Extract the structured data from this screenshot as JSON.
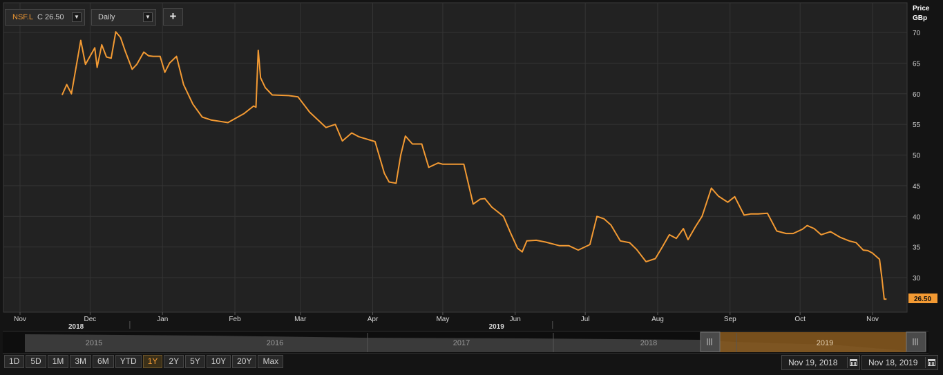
{
  "toolbar": {
    "symbol": "NSF.L",
    "close_text": "C 26.50",
    "interval": "Daily",
    "add_label": "+"
  },
  "axis": {
    "price_label": "Price",
    "unit_label": "GBp"
  },
  "last_value_label": "26.50",
  "colors": {
    "line": "#f39a33",
    "background": "#222222",
    "grid": "#343434",
    "nav_selection": "#8a5a1e"
  },
  "chart_data": {
    "type": "line",
    "series": [
      {
        "name": "NSF.L",
        "x": [
          "2018-11-19",
          "2018-11-21",
          "2018-11-23",
          "2018-11-27",
          "2018-11-29",
          "2018-12-03",
          "2018-12-04",
          "2018-12-06",
          "2018-12-08",
          "2018-12-10",
          "2018-12-12",
          "2018-12-14",
          "2018-12-16",
          "2018-12-19",
          "2018-12-21",
          "2018-12-24",
          "2018-12-26",
          "2018-12-28",
          "2018-12-31",
          "2019-01-02",
          "2019-01-04",
          "2019-01-07",
          "2019-01-10",
          "2019-01-14",
          "2019-01-18",
          "2019-01-22",
          "2019-01-29",
          "2019-02-05",
          "2019-02-09",
          "2019-02-10",
          "2019-02-11",
          "2019-02-12",
          "2019-02-14",
          "2019-02-17",
          "2019-02-24",
          "2019-02-28",
          "2019-03-05",
          "2019-03-12",
          "2019-03-16",
          "2019-03-19",
          "2019-03-23",
          "2019-03-26",
          "2019-04-02",
          "2019-04-06",
          "2019-04-08",
          "2019-04-11",
          "2019-04-13",
          "2019-04-15",
          "2019-04-18",
          "2019-04-22",
          "2019-04-25",
          "2019-04-29",
          "2019-05-01",
          "2019-05-05",
          "2019-05-10",
          "2019-05-14",
          "2019-05-17",
          "2019-05-19",
          "2019-05-22",
          "2019-05-27",
          "2019-05-30",
          "2019-06-02",
          "2019-06-04",
          "2019-06-06",
          "2019-06-10",
          "2019-06-14",
          "2019-06-20",
          "2019-06-24",
          "2019-06-28",
          "2019-07-03",
          "2019-07-06",
          "2019-07-09",
          "2019-07-12",
          "2019-07-16",
          "2019-07-20",
          "2019-07-23",
          "2019-07-27",
          "2019-07-31",
          "2019-08-03",
          "2019-08-06",
          "2019-08-09",
          "2019-08-12",
          "2019-08-14",
          "2019-08-17",
          "2019-08-20",
          "2019-08-24",
          "2019-08-27",
          "2019-08-31",
          "2019-09-03",
          "2019-09-07",
          "2019-09-10",
          "2019-09-13",
          "2019-09-17",
          "2019-09-21",
          "2019-09-25",
          "2019-09-28",
          "2019-10-02",
          "2019-10-04",
          "2019-10-07",
          "2019-10-10",
          "2019-10-14",
          "2019-10-18",
          "2019-10-22",
          "2019-10-25",
          "2019-10-28",
          "2019-10-30",
          "2019-11-01",
          "2019-11-04",
          "2019-11-05",
          "2019-11-06",
          "2019-11-07"
        ],
        "y": [
          59.8,
          61.5,
          60.0,
          68.7,
          64.8,
          67.5,
          64.3,
          68.0,
          66.0,
          65.8,
          70.1,
          69.2,
          67.0,
          64.0,
          64.8,
          66.8,
          66.2,
          66.1,
          66.1,
          63.5,
          65.0,
          66.1,
          61.5,
          58.3,
          56.2,
          55.7,
          55.3,
          56.8,
          58.0,
          57.8,
          67.1,
          62.6,
          61.0,
          59.8,
          59.7,
          59.5,
          57.0,
          54.5,
          55.0,
          52.3,
          53.6,
          53.0,
          52.2,
          47.0,
          45.6,
          45.4,
          50.0,
          53.1,
          51.8,
          51.8,
          48.0,
          48.7,
          48.5,
          48.5,
          48.5,
          42.0,
          42.8,
          42.9,
          41.5,
          40.0,
          37.3,
          34.8,
          34.2,
          36.0,
          36.1,
          35.8,
          35.2,
          35.2,
          34.5,
          35.4,
          40.0,
          39.6,
          38.6,
          36.0,
          35.7,
          34.6,
          32.6,
          33.1,
          35.0,
          37.0,
          36.4,
          38.0,
          36.2,
          38.2,
          40.0,
          44.6,
          43.3,
          42.3,
          43.2,
          40.2,
          40.4,
          40.4,
          40.5,
          37.6,
          37.2,
          37.2,
          37.9,
          38.5,
          38.0,
          37.0,
          37.5,
          36.6,
          36.0,
          35.7,
          34.5,
          34.4,
          34.0,
          33.0,
          30.0,
          26.5,
          26.5
        ]
      }
    ],
    "ylim": [
      25,
      70
    ],
    "yticks": [
      30,
      35,
      40,
      45,
      50,
      55,
      60,
      65,
      70
    ],
    "xticks": [
      {
        "date": "2018-11-01",
        "label": "Nov"
      },
      {
        "date": "2018-12-01",
        "label": "Dec"
      },
      {
        "date": "2019-01-01",
        "label": "Jan"
      },
      {
        "date": "2019-02-01",
        "label": "Feb"
      },
      {
        "date": "2019-03-01",
        "label": "Mar"
      },
      {
        "date": "2019-04-01",
        "label": "Apr"
      },
      {
        "date": "2019-05-01",
        "label": "May"
      },
      {
        "date": "2019-06-01",
        "label": "Jun"
      },
      {
        "date": "2019-07-01",
        "label": "Jul"
      },
      {
        "date": "2019-08-01",
        "label": "Aug"
      },
      {
        "date": "2019-09-01",
        "label": "Sep"
      },
      {
        "date": "2019-10-01",
        "label": "Oct"
      },
      {
        "date": "2019-11-01",
        "label": "Nov"
      }
    ],
    "year_labels": [
      {
        "date": "2018-11-25",
        "label": "2018"
      },
      {
        "date": "2019-05-24",
        "label": "2019"
      }
    ],
    "grid": true,
    "legend": "none"
  },
  "navigator": {
    "years": [
      "2015",
      "2016",
      "2017",
      "2018",
      "2019"
    ],
    "selected": "2019"
  },
  "range_buttons": [
    "1D",
    "5D",
    "1M",
    "3M",
    "6M",
    "YTD",
    "1Y",
    "2Y",
    "5Y",
    "10Y",
    "20Y",
    "Max"
  ],
  "active_range": "1Y",
  "date_range": {
    "from": "Nov 19, 2018",
    "to": "Nov 18, 2019"
  }
}
